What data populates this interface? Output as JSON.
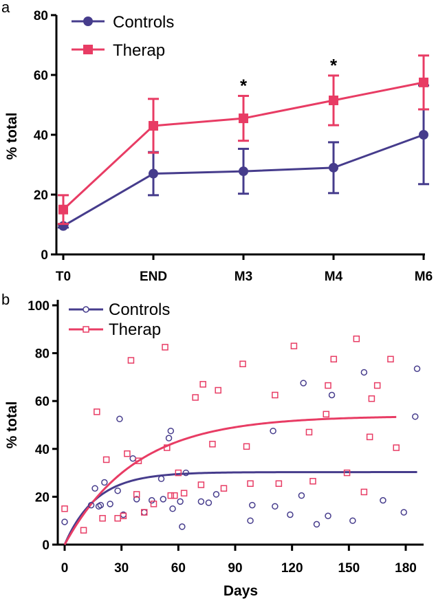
{
  "colors": {
    "controls": "#463c8c",
    "therap": "#e83c64",
    "axis": "#000000"
  },
  "chart_data": [
    {
      "panel": "a",
      "type": "line",
      "title": "",
      "xlabel": "",
      "ylabel": "% total",
      "categories": [
        "T0",
        "END",
        "M3",
        "M4",
        "M6"
      ],
      "ylim": [
        0,
        80
      ],
      "yticks": [
        "0",
        "20",
        "40",
        "60",
        "80"
      ],
      "series": [
        {
          "name": "Controls",
          "marker": "circle",
          "values": [
            9.5,
            27,
            27.8,
            29,
            40
          ],
          "err": [
            0.5,
            7.2,
            7.5,
            8.5,
            16.5
          ]
        },
        {
          "name": "Therap",
          "marker": "square",
          "values": [
            15,
            43,
            45.5,
            51.5,
            57.5
          ],
          "err": [
            4.8,
            9,
            7.5,
            8.3,
            9
          ]
        }
      ],
      "annotations": [
        {
          "category": "M3",
          "text": "*"
        },
        {
          "category": "M4",
          "text": "*"
        }
      ],
      "legend": "top-left"
    },
    {
      "panel": "b",
      "type": "scatter",
      "title": "",
      "xlabel": "Days",
      "ylabel": "% total",
      "xlim": [
        0,
        190
      ],
      "ylim": [
        0,
        100
      ],
      "xticks": [
        "0",
        "30",
        "60",
        "90",
        "120",
        "150",
        "180"
      ],
      "yticks": [
        "0",
        "20",
        "40",
        "60",
        "80",
        "100"
      ],
      "series": [
        {
          "name": "Controls",
          "marker": "open-circle",
          "points": [
            [
              0,
              9.5
            ],
            [
              14,
              16.5
            ],
            [
              16,
              23.5
            ],
            [
              18,
              16
            ],
            [
              19,
              16.5
            ],
            [
              21,
              26
            ],
            [
              24,
              17
            ],
            [
              28,
              22.5
            ],
            [
              29,
              52.5
            ],
            [
              31,
              12.5
            ],
            [
              36,
              36
            ],
            [
              38,
              19
            ],
            [
              42,
              13.5
            ],
            [
              46,
              18.5
            ],
            [
              51,
              27.5
            ],
            [
              52,
              19
            ],
            [
              55,
              44.5
            ],
            [
              56,
              47.5
            ],
            [
              57,
              15
            ],
            [
              61,
              18
            ],
            [
              62,
              7.5
            ],
            [
              64,
              30
            ],
            [
              72,
              18
            ],
            [
              76,
              17.5
            ],
            [
              80,
              21
            ],
            [
              98,
              10
            ],
            [
              99,
              16.5
            ],
            [
              110,
              47.5
            ],
            [
              111,
              16
            ],
            [
              119,
              12.5
            ],
            [
              125,
              20.5
            ],
            [
              126,
              67.5
            ],
            [
              133,
              8.5
            ],
            [
              139,
              12
            ],
            [
              141,
              62.5
            ],
            [
              152,
              10
            ],
            [
              158,
              72
            ],
            [
              168,
              18.5
            ],
            [
              179,
              13.5
            ],
            [
              185,
              53.5
            ],
            [
              186,
              73.5
            ]
          ]
        },
        {
          "name": "Therap",
          "marker": "open-square",
          "points": [
            [
              0,
              15
            ],
            [
              10,
              6
            ],
            [
              17,
              55.5
            ],
            [
              20,
              11
            ],
            [
              22,
              35.5
            ],
            [
              28,
              11
            ],
            [
              31,
              12
            ],
            [
              35,
              77
            ],
            [
              33,
              38
            ],
            [
              38,
              21
            ],
            [
              39,
              35
            ],
            [
              42,
              13.5
            ],
            [
              47,
              17
            ],
            [
              53,
              82.5
            ],
            [
              54,
              40.5
            ],
            [
              56,
              20.5
            ],
            [
              60,
              30
            ],
            [
              58,
              20.5
            ],
            [
              63,
              21.5
            ],
            [
              69,
              61.5
            ],
            [
              72,
              25
            ],
            [
              73,
              67
            ],
            [
              78,
              42
            ],
            [
              81,
              64.5
            ],
            [
              84,
              23.5
            ],
            [
              94,
              75.5
            ],
            [
              96,
              41
            ],
            [
              98,
              25.5
            ],
            [
              111,
              62.5
            ],
            [
              113,
              25.5
            ],
            [
              121,
              83
            ],
            [
              129,
              47
            ],
            [
              131,
              26.5
            ],
            [
              138,
              54.5
            ],
            [
              139,
              66.5
            ],
            [
              142,
              77.5
            ],
            [
              149,
              30
            ],
            [
              154,
              86
            ],
            [
              158,
              22
            ],
            [
              161,
              45
            ],
            [
              162,
              61
            ],
            [
              165,
              66.5
            ],
            [
              172,
              77.5
            ],
            [
              175,
              40.5
            ]
          ]
        }
      ],
      "curves": [
        {
          "name": "Controls",
          "plateau": 30.3,
          "k": 0.06,
          "xmax": 186
        },
        {
          "name": "Therap",
          "plateau": 53.8,
          "k": 0.027,
          "xmax": 175
        }
      ],
      "legend": "top-left"
    }
  ]
}
